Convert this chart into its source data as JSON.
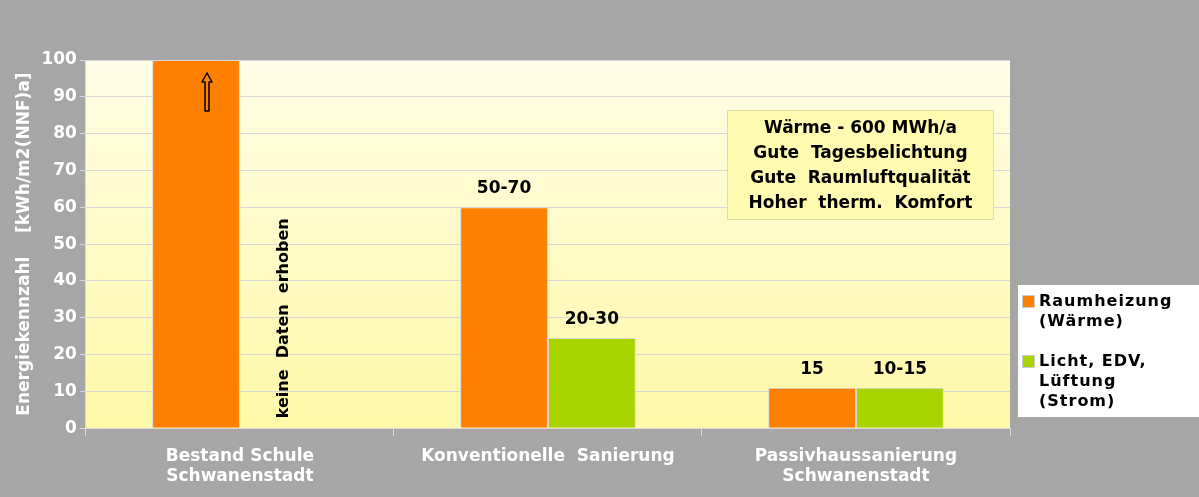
{
  "chart_data": {
    "type": "bar",
    "ylabel": "Energiekennzahl    [kWh/m2(NNF)a]",
    "categories": [
      "Bestand  Schule Schwanenstadt",
      "Konventionelle  Sanierung",
      "Passivhaussanierung Schwanenstadt"
    ],
    "series": [
      {
        "name": "Raumheizung (Wärme)",
        "color": "#ff7f00",
        "values": [
          100,
          60,
          11
        ]
      },
      {
        "name": "Licht,  EDV, Lüftung (Strom)",
        "color": "#a8d400",
        "values": [
          null,
          24.5,
          11
        ]
      }
    ],
    "ylim": [
      0,
      100
    ],
    "yticks": [
      0,
      10,
      20,
      30,
      40,
      50,
      60,
      70,
      80,
      90,
      100
    ],
    "grid": "y",
    "legend": "right",
    "annotations": [
      "keine  Daten  erhoben",
      "Wärme - 600 MWh/a",
      "Gute  Tagesbelichtung",
      "Gute  Raumluftqualität",
      "Hoher  therm.  Komfort",
      {
        "text": "50-70",
        "x": "Konventionelle  Sanierung",
        "y": 60
      },
      {
        "text": "20-30",
        "x": "Konventionelle  Sanierung",
        "y": 24.5
      },
      {
        "text": "15",
        "x": "Passivhaussanierung Schwanenstadt",
        "y": 11
      },
      {
        "text": "10-15",
        "x": "Passivhaussanierung Schwanenstadt",
        "y": 11
      }
    ]
  }
}
